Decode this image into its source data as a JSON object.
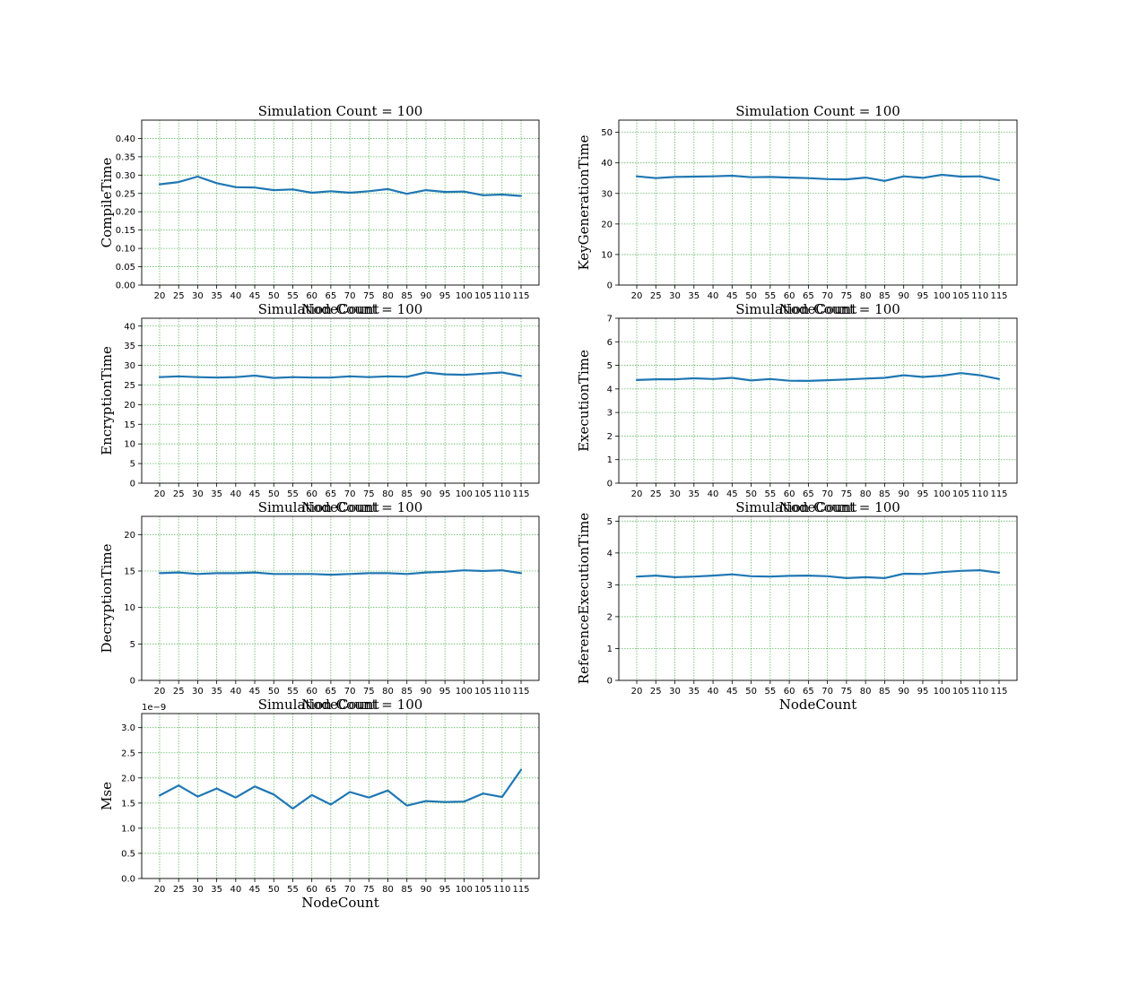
{
  "colors": {
    "line": "#1f77b4",
    "grid": "#2ca02c"
  },
  "chart_data": [
    {
      "type": "line",
      "title": "Simulation Count = 100",
      "xlabel": "NodeCount",
      "ylabel": "CompileTime",
      "categories": [
        "20",
        "25",
        "30",
        "35",
        "40",
        "45",
        "50",
        "55",
        "60",
        "65",
        "70",
        "75",
        "80",
        "85",
        "90",
        "95",
        "100",
        "105",
        "110",
        "115"
      ],
      "values": [
        0.275,
        0.281,
        0.296,
        0.278,
        0.267,
        0.266,
        0.259,
        0.261,
        0.252,
        0.256,
        0.252,
        0.256,
        0.262,
        0.249,
        0.259,
        0.254,
        0.255,
        0.245,
        0.247,
        0.243
      ],
      "ylim": [
        0,
        0.45
      ],
      "yticks": [
        0.0,
        0.05,
        0.1,
        0.15,
        0.2,
        0.25,
        0.3,
        0.35,
        0.4
      ],
      "yticklabels": [
        "0.00",
        "0.05",
        "0.10",
        "0.15",
        "0.20",
        "0.25",
        "0.30",
        "0.35",
        "0.40"
      ],
      "offset_text": "",
      "grid": true
    },
    {
      "type": "line",
      "title": "Simulation Count = 100",
      "xlabel": "NodeCount",
      "ylabel": "KeyGenerationTime",
      "categories": [
        "20",
        "25",
        "30",
        "35",
        "40",
        "45",
        "50",
        "55",
        "60",
        "65",
        "70",
        "75",
        "80",
        "85",
        "90",
        "95",
        "100",
        "105",
        "110",
        "115"
      ],
      "values": [
        35.6,
        35.0,
        35.4,
        35.5,
        35.6,
        35.8,
        35.3,
        35.4,
        35.2,
        35.0,
        34.7,
        34.6,
        35.2,
        34.1,
        35.6,
        35.1,
        36.1,
        35.5,
        35.6,
        34.3
      ],
      "ylim": [
        0,
        54
      ],
      "yticks": [
        0,
        10,
        20,
        30,
        40,
        50
      ],
      "yticklabels": [
        "0",
        "10",
        "20",
        "30",
        "40",
        "50"
      ],
      "offset_text": "",
      "grid": true
    },
    {
      "type": "line",
      "title": "Simulation Count = 100",
      "xlabel": "NodeCount",
      "ylabel": "EncryptionTime",
      "categories": [
        "20",
        "25",
        "30",
        "35",
        "40",
        "45",
        "50",
        "55",
        "60",
        "65",
        "70",
        "75",
        "80",
        "85",
        "90",
        "95",
        "100",
        "105",
        "110",
        "115"
      ],
      "values": [
        27.0,
        27.2,
        27.0,
        26.9,
        27.0,
        27.4,
        26.8,
        27.0,
        26.9,
        26.9,
        27.2,
        27.0,
        27.2,
        27.1,
        28.2,
        27.7,
        27.6,
        27.9,
        28.2,
        27.3
      ],
      "ylim": [
        0,
        42
      ],
      "yticks": [
        0,
        5,
        10,
        15,
        20,
        25,
        30,
        35,
        40
      ],
      "yticklabels": [
        "0",
        "5",
        "10",
        "15",
        "20",
        "25",
        "30",
        "35",
        "40"
      ],
      "offset_text": "",
      "grid": true
    },
    {
      "type": "line",
      "title": "Simulation Count = 100",
      "xlabel": "NodeCount",
      "ylabel": "ExecutionTime",
      "categories": [
        "20",
        "25",
        "30",
        "35",
        "40",
        "45",
        "50",
        "55",
        "60",
        "65",
        "70",
        "75",
        "80",
        "85",
        "90",
        "95",
        "100",
        "105",
        "110",
        "115"
      ],
      "values": [
        4.38,
        4.41,
        4.41,
        4.45,
        4.42,
        4.47,
        4.36,
        4.42,
        4.35,
        4.34,
        4.37,
        4.4,
        4.44,
        4.47,
        4.58,
        4.51,
        4.56,
        4.67,
        4.58,
        4.42
      ],
      "ylim": [
        0,
        7
      ],
      "yticks": [
        0,
        1,
        2,
        3,
        4,
        5,
        6,
        7
      ],
      "yticklabels": [
        "0",
        "1",
        "2",
        "3",
        "4",
        "5",
        "6",
        "7"
      ],
      "offset_text": "",
      "grid": true
    },
    {
      "type": "line",
      "title": "Simulation Count = 100",
      "xlabel": "NodeCount",
      "ylabel": "DecryptionTime",
      "categories": [
        "20",
        "25",
        "30",
        "35",
        "40",
        "45",
        "50",
        "55",
        "60",
        "65",
        "70",
        "75",
        "80",
        "85",
        "90",
        "95",
        "100",
        "105",
        "110",
        "115"
      ],
      "values": [
        14.7,
        14.8,
        14.6,
        14.7,
        14.7,
        14.8,
        14.6,
        14.6,
        14.6,
        14.5,
        14.6,
        14.7,
        14.7,
        14.6,
        14.8,
        14.9,
        15.1,
        15.0,
        15.1,
        14.7
      ],
      "ylim": [
        0,
        22.5
      ],
      "yticks": [
        0,
        5,
        10,
        15,
        20
      ],
      "yticklabels": [
        "0",
        "5",
        "10",
        "15",
        "20"
      ],
      "offset_text": "",
      "grid": true
    },
    {
      "type": "line",
      "title": "Simulation Count = 100",
      "xlabel": "NodeCount",
      "ylabel": "ReferenceExecutionTime",
      "categories": [
        "20",
        "25",
        "30",
        "35",
        "40",
        "45",
        "50",
        "55",
        "60",
        "65",
        "70",
        "75",
        "80",
        "85",
        "90",
        "95",
        "100",
        "105",
        "110",
        "115"
      ],
      "values": [
        3.26,
        3.29,
        3.24,
        3.26,
        3.29,
        3.33,
        3.27,
        3.26,
        3.28,
        3.29,
        3.27,
        3.21,
        3.24,
        3.21,
        3.35,
        3.34,
        3.4,
        3.44,
        3.46,
        3.38
      ],
      "ylim": [
        0,
        5.15
      ],
      "yticks": [
        0,
        1,
        2,
        3,
        4,
        5
      ],
      "yticklabels": [
        "0",
        "1",
        "2",
        "3",
        "4",
        "5"
      ],
      "offset_text": "",
      "grid": true
    },
    {
      "type": "line",
      "title": "Simulation Count = 100",
      "xlabel": "NodeCount",
      "ylabel": "Mse",
      "categories": [
        "20",
        "25",
        "30",
        "35",
        "40",
        "45",
        "50",
        "55",
        "60",
        "65",
        "70",
        "75",
        "80",
        "85",
        "90",
        "95",
        "100",
        "105",
        "110",
        "115"
      ],
      "values": [
        1.65,
        1.85,
        1.63,
        1.79,
        1.61,
        1.83,
        1.67,
        1.39,
        1.66,
        1.47,
        1.72,
        1.61,
        1.75,
        1.45,
        1.54,
        1.52,
        1.53,
        1.69,
        1.62,
        2.16
      ],
      "ylim": [
        0,
        3.28
      ],
      "yticks": [
        0,
        0.5,
        1.0,
        1.5,
        2.0,
        2.5,
        3.0
      ],
      "yticklabels": [
        "0.0",
        "0.5",
        "1.0",
        "1.5",
        "2.0",
        "2.5",
        "3.0"
      ],
      "offset_text": "1e−9",
      "grid": true
    }
  ]
}
